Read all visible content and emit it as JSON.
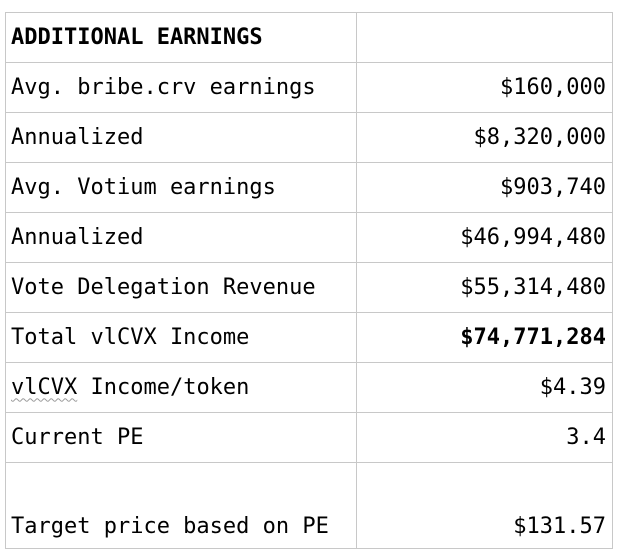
{
  "table": {
    "header": {
      "label": "ADDITIONAL EARNINGS",
      "value": ""
    },
    "rows": [
      {
        "label": "Avg. bribe.crv earnings",
        "value": "$160,000"
      },
      {
        "label": "Annualized",
        "value": "$8,320,000"
      },
      {
        "label": "Avg. Votium earnings",
        "value": "$903,740"
      },
      {
        "label": "Annualized",
        "value": "$46,994,480"
      },
      {
        "label": "Vote Delegation Revenue",
        "value": "$55,314,480"
      },
      {
        "label": "Total vlCVX Income",
        "value": "$74,771,284"
      },
      {
        "label_underlined": "vlCVX",
        "label_rest": " Income/token",
        "value": "$4.39"
      },
      {
        "label": "Current PE",
        "value": "3.4"
      },
      {
        "label": "Target price based on PE",
        "value": "$131.57"
      }
    ]
  }
}
